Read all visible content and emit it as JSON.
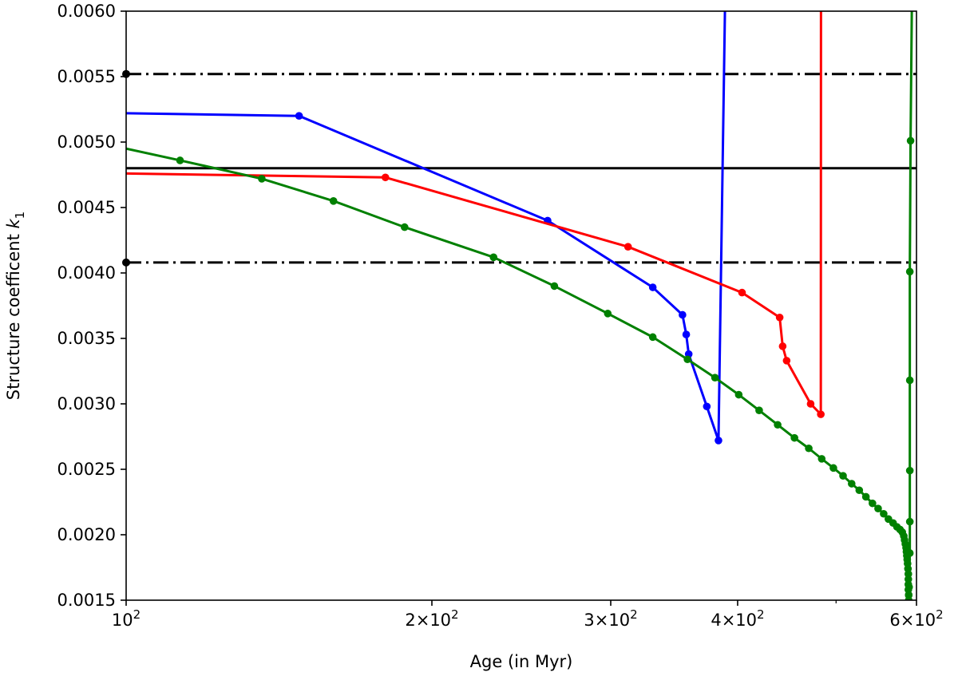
{
  "chart_data": {
    "type": "line",
    "xlabel": "Age (in Myr)",
    "ylabel_text": "Structure coefficent ",
    "ylabel_symbol": "k",
    "ylabel_subscript": "1",
    "x_scale": "log",
    "xlim": [
      100,
      600
    ],
    "ylim": [
      0.0015,
      0.006
    ],
    "grid": false,
    "x_ticks": [
      {
        "value": 100,
        "mantissa": "",
        "base": "10",
        "exp": "2"
      },
      {
        "value": 200,
        "mantissa": "2",
        "base": "10",
        "exp": "2"
      },
      {
        "value": 300,
        "mantissa": "3",
        "base": "10",
        "exp": "2"
      },
      {
        "value": 400,
        "mantissa": "4",
        "base": "10",
        "exp": "2"
      },
      {
        "value": 600,
        "mantissa": "6",
        "base": "10",
        "exp": "2"
      }
    ],
    "x_minor_ticks": [
      500
    ],
    "y_ticks": [
      "0.0015",
      "0.0020",
      "0.0025",
      "0.0030",
      "0.0035",
      "0.0040",
      "0.0045",
      "0.0050",
      "0.0055",
      "0.0060"
    ],
    "reference_lines": [
      {
        "y": 0.0048,
        "style": "solid",
        "color": "#000000"
      },
      {
        "y": 0.00552,
        "style": "dashdot",
        "color": "#000000"
      },
      {
        "y": 0.00408,
        "style": "dashdot",
        "color": "#000000"
      }
    ],
    "series": [
      {
        "color": "#0000ff",
        "x": [
          100,
          148,
          260,
          330,
          353,
          356,
          358,
          373,
          383,
          389
        ],
        "y": [
          0.00522,
          0.0052,
          0.0044,
          0.00389,
          0.00368,
          0.00353,
          0.00338,
          0.00298,
          0.00272,
          0.0062
        ],
        "markers": [
          false,
          true,
          true,
          true,
          true,
          true,
          true,
          true,
          true,
          false
        ]
      },
      {
        "color": "#ff0000",
        "x": [
          100,
          180,
          312,
          404,
          440,
          443,
          447,
          472,
          483,
          483.2
        ],
        "y": [
          0.00476,
          0.00473,
          0.0042,
          0.00385,
          0.00366,
          0.00344,
          0.00333,
          0.003,
          0.00292,
          0.0062
        ],
        "markers": [
          false,
          true,
          true,
          true,
          true,
          true,
          true,
          true,
          true,
          false
        ]
      },
      {
        "color": "#008000",
        "x": [
          100,
          113,
          136,
          160,
          188,
          230,
          264,
          298,
          330,
          357,
          380,
          401,
          420,
          438,
          455,
          470,
          484,
          497,
          508,
          518,
          527,
          535,
          543,
          550,
          557,
          563,
          569,
          574,
          578,
          581,
          583,
          584,
          585,
          586,
          586.5,
          587,
          587.5,
          588,
          588.5,
          589,
          589,
          589,
          589,
          589.5,
          589.5,
          589.5,
          590,
          591,
          591,
          591,
          591,
          591,
          592,
          594
        ],
        "y": [
          0.00495,
          0.00486,
          0.00472,
          0.00455,
          0.00435,
          0.00412,
          0.0039,
          0.00369,
          0.00351,
          0.00334,
          0.0032,
          0.00307,
          0.00295,
          0.00284,
          0.00274,
          0.00266,
          0.00258,
          0.00251,
          0.00245,
          0.00239,
          0.00234,
          0.00229,
          0.00224,
          0.0022,
          0.00216,
          0.00212,
          0.00209,
          0.00206,
          0.00204,
          0.00202,
          0.00199,
          0.00196,
          0.00193,
          0.0019,
          0.00187,
          0.00184,
          0.00181,
          0.00178,
          0.00174,
          0.0017,
          0.00166,
          0.00162,
          0.00158,
          0.00154,
          0.0015,
          0.00154,
          0.0016,
          0.00186,
          0.0021,
          0.00249,
          0.00318,
          0.00401,
          0.00501,
          0.0062
        ],
        "markers": [
          false,
          true,
          true,
          true,
          true,
          true,
          true,
          true,
          true,
          true,
          true,
          true,
          true,
          true,
          true,
          true,
          true,
          true,
          true,
          true,
          true,
          true,
          true,
          true,
          true,
          true,
          true,
          true,
          true,
          true,
          true,
          true,
          true,
          true,
          true,
          true,
          true,
          true,
          true,
          true,
          true,
          true,
          true,
          true,
          true,
          true,
          true,
          true,
          true,
          true,
          true,
          true,
          true,
          false
        ]
      }
    ]
  }
}
